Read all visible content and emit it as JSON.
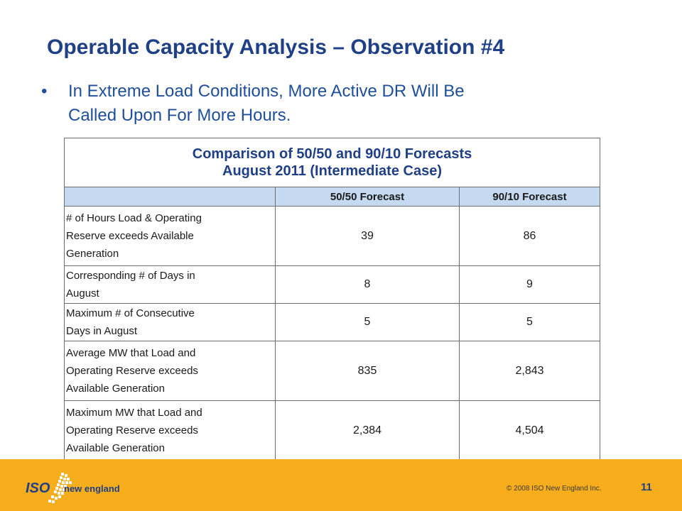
{
  "slide": {
    "title": "Operable Capacity Analysis – Observation #4",
    "bullet": {
      "symbol": "•",
      "line1": "In Extreme Load Conditions, More Active DR Will Be",
      "line2": "Called Upon For More Hours."
    }
  },
  "table": {
    "caption_line1": "Comparison of 50/50 and 90/10 Forecasts",
    "caption_line2": "August 2011 (Intermediate Case)",
    "columns": [
      "",
      "50/50 Forecast",
      "90/10 Forecast"
    ],
    "rows": [
      {
        "label_lines": [
          "# of Hours Load & Operating",
          "Reserve exceeds Available",
          "Generation"
        ],
        "v5050": "39",
        "v9010": "86"
      },
      {
        "label_lines": [
          "Corresponding # of Days in",
          "August"
        ],
        "v5050": "8",
        "v9010": "9"
      },
      {
        "label_lines": [
          "Maximum # of Consecutive",
          "Days in August"
        ],
        "v5050": "5",
        "v9010": "5"
      },
      {
        "label_lines": [
          "Average MW that Load and",
          "Operating Reserve exceeds",
          "Available Generation"
        ],
        "v5050": "835",
        "v9010": "2,843"
      },
      {
        "label_lines": [
          "Maximum MW that Load and",
          "Operating Reserve exceeds",
          "Available Generation"
        ],
        "v5050": "2,384",
        "v9010": "4,504"
      }
    ]
  },
  "footer": {
    "logo_iso": "ISO",
    "logo_name": "new england",
    "copyright": "© 2008 ISO New England Inc.",
    "page_number": "11",
    "bar_color": "#f8ad1c",
    "logo_color": "#1f3f87"
  }
}
